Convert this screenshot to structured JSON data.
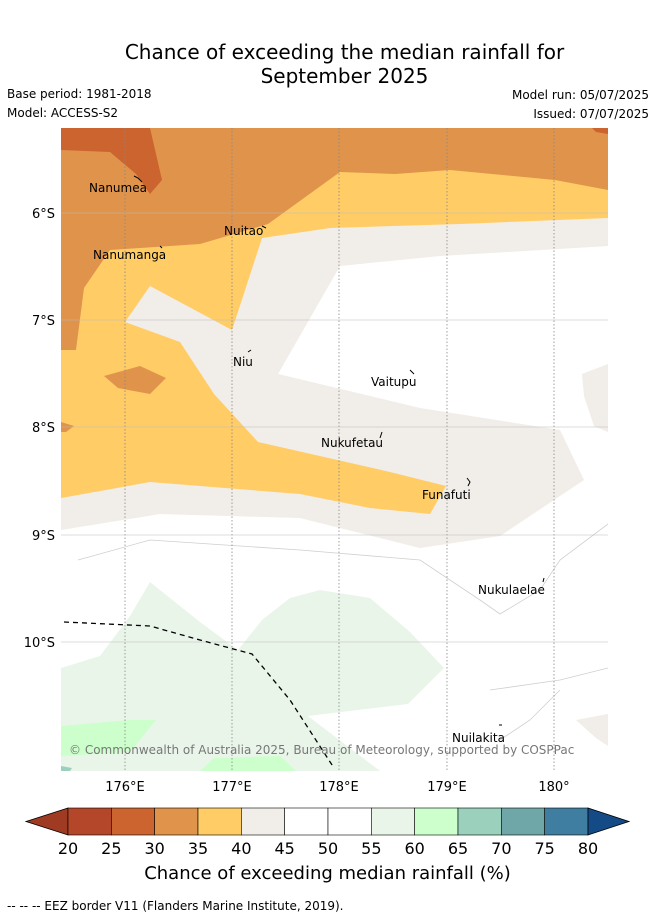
{
  "title_line1": "Chance of exceeding the median rainfall for",
  "title_line2": "September 2025",
  "meta": {
    "base_period": "Base period: 1981-2018",
    "model": "Model: ACCESS-S2",
    "model_run": "Model run: 05/07/2025",
    "issued": "Issued: 07/07/2025"
  },
  "map": {
    "x_ticks": [
      "176°E",
      "177°E",
      "178°E",
      "179°E",
      "180°"
    ],
    "y_ticks": [
      "6°S",
      "7°S",
      "8°S",
      "9°S",
      "10°S"
    ],
    "places": [
      "Nanumea",
      "Nuitao",
      "Nanumanga",
      "Niu",
      "Vaitupu",
      "Nukufetau",
      "Funafuti",
      "Nukulaelae",
      "Nuilakita"
    ],
    "copyright": "© Commonwealth of Australia 2025, Bureau of Meteorology, supported by COSPPac"
  },
  "colorbar": {
    "labels": [
      "20",
      "25",
      "30",
      "35",
      "40",
      "45",
      "50",
      "55",
      "60",
      "65",
      "70",
      "75",
      "80"
    ],
    "colors": [
      "#b4462a",
      "#cb642f",
      "#e0934b",
      "#ffcc66",
      "#f1ede8",
      "#ffffff",
      "#ffffff",
      "#eaf5ea",
      "#ccffcc",
      "#9ad0bc",
      "#6fa6a8",
      "#3f7ea0",
      "#1b4f8a"
    ],
    "under_color": "#9e3b22",
    "over_color": "#144a85",
    "title": "Chance of exceeding median rainfall (%)"
  },
  "legend": {
    "eez_note": "--  --  -- EEZ border V11 (Flanders Marine Institute, 2019)."
  }
}
